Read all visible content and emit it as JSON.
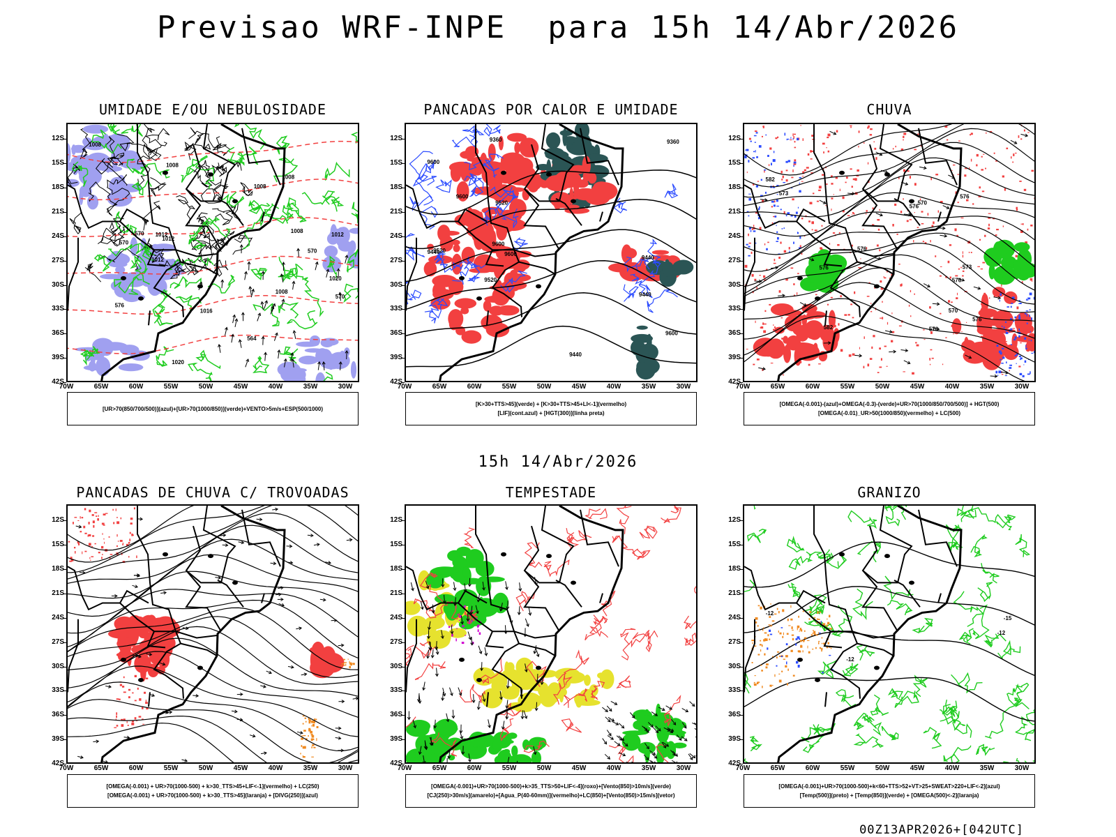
{
  "title": "Previsao WRF-INPE  para 15h 14/Abr/2026",
  "mid_title": "15h 14/Abr/2026",
  "footer": "00Z13APR2026+[042UTC]",
  "colors": {
    "red": "#f24040",
    "green": "#1fcc1f",
    "blue": "#2b4bff",
    "lavender": "#a0a0f0",
    "darkgreen": "#2b5555",
    "yellow": "#e6e22e",
    "orange": "#f08a20",
    "magenta": "#d000d0"
  },
  "chart_data": [
    {
      "type": "heatmap",
      "title": "UMIDADE E/OU NEBULOSIDADE",
      "x_ticks": [
        "70W",
        "65W",
        "60W",
        "55W",
        "50W",
        "45W",
        "40W",
        "35W",
        "30W"
      ],
      "y_ticks": [
        "12S",
        "15S",
        "18S",
        "21S",
        "24S",
        "27S",
        "30S",
        "33S",
        "36S",
        "39S",
        "42S"
      ],
      "xlim": [
        -70,
        -28
      ],
      "ylim": [
        -42,
        -10
      ],
      "contour_labels": [
        "1008",
        "1008",
        "1008",
        "1008",
        "1012",
        "1012",
        "1012",
        "1012",
        "1016",
        "1020",
        "1020",
        "1008",
        "1008",
        "576",
        "570",
        "570",
        "570",
        "570",
        "564"
      ],
      "legend": [
        "[UR>70(850/700/500)](azul)+[UR>70(1000/850)](verde)+VENTO>5m/s+ESP(500/1000)"
      ]
    },
    {
      "type": "heatmap",
      "title": "PANCADAS POR CALOR E UMIDADE",
      "x_ticks": [
        "70W",
        "65W",
        "60W",
        "55W",
        "50W",
        "45W",
        "40W",
        "35W",
        "30W"
      ],
      "y_ticks": [
        "12S",
        "15S",
        "18S",
        "21S",
        "24S",
        "27S",
        "30S",
        "33S",
        "36S",
        "39S",
        "42S"
      ],
      "xlim": [
        -70,
        -28
      ],
      "ylim": [
        -42,
        -10
      ],
      "contour_labels": [
        "9600",
        "9520",
        "9600",
        "9600",
        "9600",
        "9440",
        "9520",
        "9600",
        "9360",
        "9440",
        "9520",
        "9440",
        "9440",
        "9360"
      ],
      "legend": [
        "[K>30+TTS>45](verde) + [K>30+TTS>45+LI<-1](vermelho)",
        "[LIF](cont.azul) + [HGT(300)](linha preta)"
      ]
    },
    {
      "type": "heatmap",
      "title": "CHUVA",
      "x_ticks": [
        "70W",
        "65W",
        "60W",
        "55W",
        "50W",
        "45W",
        "40W",
        "35W",
        "30W"
      ],
      "y_ticks": [
        "12S",
        "15S",
        "18S",
        "21S",
        "24S",
        "27S",
        "30S",
        "33S",
        "36S",
        "39S",
        "42S"
      ],
      "xlim": [
        -70,
        -28
      ],
      "ylim": [
        -42,
        -10
      ],
      "contour_labels": [
        "582",
        "576",
        "576",
        "576",
        "576",
        "576",
        "573",
        "570",
        "573",
        "570",
        "576",
        "576",
        "582"
      ],
      "legend": [
        "[OMEGA(-0.001)-(azul)+OMEGA(-0.3)-(verde)+UR>70(1000/850/700/500)] + HGT(500)",
        "[OMEGA(-0.01)_UR>50(1000/850)(vermelho) + LC(500)"
      ]
    },
    {
      "type": "heatmap",
      "title": "PANCADAS DE CHUVA C/ TROVOADAS",
      "x_ticks": [
        "70W",
        "65W",
        "60W",
        "55W",
        "50W",
        "45W",
        "40W",
        "35W",
        "30W"
      ],
      "y_ticks": [
        "12S",
        "15S",
        "18S",
        "21S",
        "24S",
        "27S",
        "30S",
        "33S",
        "36S",
        "39S",
        "42S"
      ],
      "xlim": [
        -70,
        -28
      ],
      "ylim": [
        -42,
        -10
      ],
      "legend": [
        "[OMEGA(-0.001) + UR>70(1000-500) + k>30_TTS>45+LIF<-1](vermelho) + LC(250)",
        "[OMEGA(-0.001) + UR>70(1000-500) + k>30_TTS>45](laranja) + [DIVG(250)](azul)"
      ]
    },
    {
      "type": "heatmap",
      "title": "TEMPESTADE",
      "x_ticks": [
        "70W",
        "65W",
        "60W",
        "55W",
        "50W",
        "45W",
        "40W",
        "35W",
        "30W"
      ],
      "y_ticks": [
        "12S",
        "15S",
        "18S",
        "21S",
        "24S",
        "27S",
        "30S",
        "33S",
        "36S",
        "39S",
        "42S"
      ],
      "xlim": [
        -70,
        -28
      ],
      "ylim": [
        -42,
        -10
      ],
      "legend": [
        "[OMEGA(-0.001)+UR>70(1000-500)+k>35_TTS>50+LIF<-4](roxo)+[Vento(850)>10m/s](verde)",
        "[CJ(250)>30m/s](amarelo)+[Agua_P(40-60mm)](vermelho)+LC(850)+[Vento(850)>15m/s](vetor)"
      ]
    },
    {
      "type": "heatmap",
      "title": "GRANIZO",
      "x_ticks": [
        "70W",
        "65W",
        "60W",
        "55W",
        "50W",
        "45W",
        "40W",
        "35W",
        "30W"
      ],
      "y_ticks": [
        "12S",
        "15S",
        "18S",
        "21S",
        "24S",
        "27S",
        "30S",
        "33S",
        "36S",
        "39S",
        "42S"
      ],
      "xlim": [
        -70,
        -28
      ],
      "ylim": [
        -42,
        -10
      ],
      "contour_labels": [
        "-12",
        "-12",
        "-12",
        "-15"
      ],
      "legend": [
        "[OMEGA(-0.001)+UR>70(1000-500)+k<60+TTS>52+VT>25+SWEAT>220+LIF<-2](azul)",
        "[Temp(500)](preto) + [Temp(850)](verde) + [OMEGA(500)<-2](laranja)"
      ]
    }
  ]
}
